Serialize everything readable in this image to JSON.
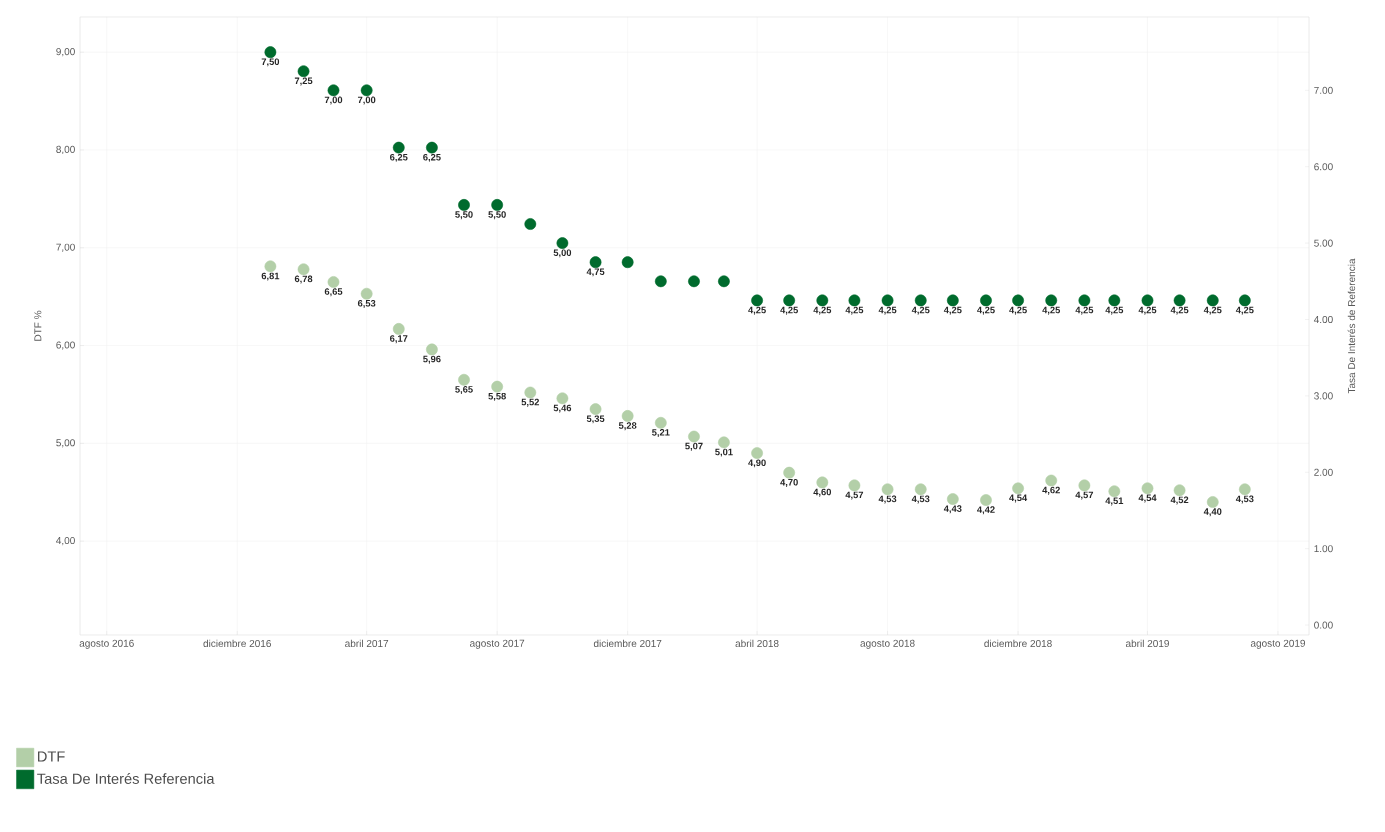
{
  "chart_data": {
    "type": "scatter",
    "ylabel": "DTF %",
    "y2label": "Tasa De Interés de Referencia",
    "x": [
      "2017-01",
      "2017-02",
      "2017-03",
      "2017-04",
      "2017-05",
      "2017-06",
      "2017-07",
      "2017-08",
      "2017-09",
      "2017-10",
      "2017-11",
      "2017-12",
      "2018-01",
      "2018-02",
      "2018-03",
      "2018-04",
      "2018-05",
      "2018-06",
      "2018-07",
      "2018-08",
      "2018-09",
      "2018-10",
      "2018-11",
      "2018-12",
      "2019-01",
      "2019-02",
      "2019-03",
      "2019-04",
      "2019-05",
      "2019-06",
      "2019-07"
    ],
    "series": [
      {
        "name": "DTF",
        "color": "#b3cfa8",
        "values": [
          6.81,
          6.78,
          6.65,
          6.53,
          6.17,
          5.96,
          5.65,
          5.58,
          5.52,
          5.46,
          5.35,
          5.28,
          5.21,
          5.07,
          5.01,
          4.9,
          4.7,
          4.6,
          4.57,
          4.53,
          4.53,
          4.43,
          4.42,
          4.54,
          4.62,
          4.57,
          4.51,
          4.54,
          4.52,
          4.4,
          4.53
        ],
        "value_labels": [
          "6,81",
          "6,78",
          "6,65",
          "6,53",
          "6,17",
          "5,96",
          "5,65",
          "5,58",
          "5,52",
          "5,46",
          "5,35",
          "5,28",
          "5,21",
          "5,07",
          "5,01",
          "4,90",
          "4,70",
          "4,60",
          "4,57",
          "4,53",
          "4,53",
          "4,43",
          "4,42",
          "4,54",
          "4,62",
          "4,57",
          "4,51",
          "4,54",
          "4,52",
          "4,40",
          "4,53"
        ]
      },
      {
        "name": "Tasa De Interés Referencia",
        "color": "#006b2d",
        "axis": "y2",
        "values": [
          7.5,
          7.25,
          7.0,
          7.0,
          6.25,
          6.25,
          5.5,
          5.5,
          5.25,
          5.0,
          4.75,
          4.75,
          4.5,
          4.5,
          4.5,
          4.25,
          4.25,
          4.25,
          4.25,
          4.25,
          4.25,
          4.25,
          4.25,
          4.25,
          4.25,
          4.25,
          4.25,
          4.25,
          4.25,
          4.25,
          4.25
        ],
        "value_labels": [
          "7,50",
          "7,25",
          "7,00",
          "7,00",
          "6,25",
          "6,25",
          "5,50",
          "5,50",
          null,
          "5,00",
          "4,75",
          null,
          null,
          null,
          null,
          "4,25",
          "4,25",
          "4,25",
          "4,25",
          "4,25",
          "4,25",
          "4,25",
          "4,25",
          "4,25",
          "4,25",
          "4,25",
          "4,25",
          "4,25",
          "4,25",
          "4,25",
          "4,25"
        ]
      }
    ],
    "xlim": [
      "2016-07-07",
      "2019-08-30"
    ],
    "xticks": [
      {
        "value": "2016-08",
        "label": "agosto 2016"
      },
      {
        "value": "2016-12",
        "label": "diciembre 2016"
      },
      {
        "value": "2017-04",
        "label": "abril 2017"
      },
      {
        "value": "2017-08",
        "label": "agosto 2017"
      },
      {
        "value": "2017-12",
        "label": "diciembre 2017"
      },
      {
        "value": "2018-04",
        "label": "abril 2018"
      },
      {
        "value": "2018-08",
        "label": "agosto 2018"
      },
      {
        "value": "2018-12",
        "label": "diciembre 2018"
      },
      {
        "value": "2019-04",
        "label": "abril 2019"
      },
      {
        "value": "2019-08",
        "label": "agosto 2019"
      }
    ],
    "ylim": [
      3.04,
      9.36
    ],
    "yticks": [
      {
        "value": 4,
        "label": "4,00"
      },
      {
        "value": 5,
        "label": "5,00"
      },
      {
        "value": 6,
        "label": "6,00"
      },
      {
        "value": 7,
        "label": "7,00"
      },
      {
        "value": 8,
        "label": "8,00"
      },
      {
        "value": 9,
        "label": "9,00"
      }
    ],
    "y2lim": [
      -0.13,
      7.96
    ],
    "y2ticks": [
      {
        "value": 0,
        "label": "0.00"
      },
      {
        "value": 1,
        "label": "1.00"
      },
      {
        "value": 2,
        "label": "2.00"
      },
      {
        "value": 3,
        "label": "3.00"
      },
      {
        "value": 4,
        "label": "4.00"
      },
      {
        "value": 5,
        "label": "5.00"
      },
      {
        "value": 6,
        "label": "6.00"
      },
      {
        "value": 7,
        "label": "7.00"
      }
    ],
    "grid": true,
    "legend": "bottom",
    "marker": "circle"
  }
}
